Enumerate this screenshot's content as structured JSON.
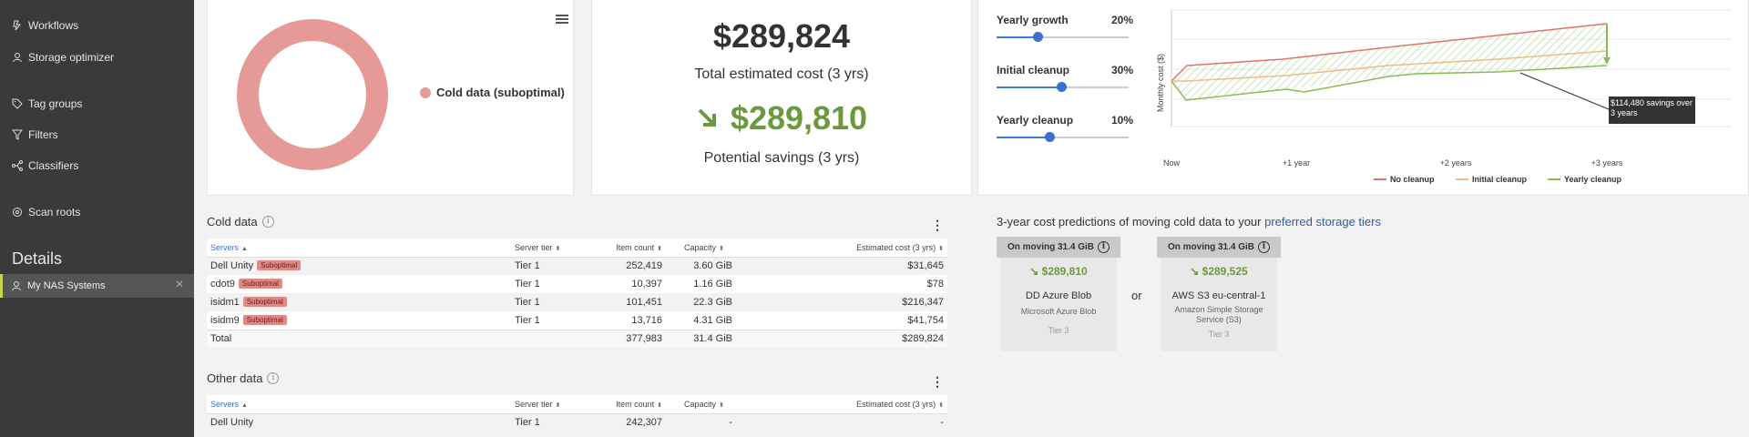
{
  "sidebar": {
    "items": [
      {
        "label": "Workflows",
        "icon": "workflow-icon"
      },
      {
        "label": "Storage optimizer",
        "icon": "user-icon"
      },
      {
        "label": "Tag groups",
        "icon": "tag-icon"
      },
      {
        "label": "Filters",
        "icon": "filter-icon"
      },
      {
        "label": "Classifiers",
        "icon": "classifier-icon"
      },
      {
        "label": "Scan roots",
        "icon": "scan-icon"
      }
    ],
    "details_heading": "Details",
    "details_item": {
      "label": "My NAS Systems",
      "icon": "user-icon"
    }
  },
  "donut": {
    "legend_label": "Cold data (suboptimal)",
    "color": "#e69a97"
  },
  "cost": {
    "total": "$289,824",
    "total_label": "Total estimated cost (3 yrs)",
    "savings": "$289,810",
    "savings_label": "Potential savings (3 yrs)"
  },
  "sliders": [
    {
      "label": "Yearly growth",
      "value_label": "20%",
      "fraction": 0.31
    },
    {
      "label": "Initial cleanup",
      "value_label": "30%",
      "fraction": 0.49
    },
    {
      "label": "Yearly cleanup",
      "value_label": "10%",
      "fraction": 0.4
    }
  ],
  "chart_data": {
    "type": "line",
    "title": "",
    "ylabel": "Monthly cost ($)",
    "xlabel": "",
    "x": [
      "Now",
      "+1 year",
      "+2 years",
      "+3 years"
    ],
    "grid": true,
    "legend_position": "bottom",
    "series": [
      {
        "name": "No cleanup",
        "color": "#e0736a"
      },
      {
        "name": "Initial cleanup",
        "color": "#eebc86"
      },
      {
        "name": "Yearly cleanup",
        "color": "#8cba52"
      }
    ],
    "annotation": "$114,480 savings over 3 years"
  },
  "cold_table": {
    "title": "Cold data",
    "columns": [
      "Servers",
      "Server tier",
      "Item count",
      "Capacity",
      "Estimated cost (3 yrs)"
    ],
    "badge": "Suboptimal",
    "rows": [
      [
        "Dell Unity",
        "Tier 1",
        "252,419",
        "3.60 GiB",
        "$31,645"
      ],
      [
        "cdot9",
        "Tier 1",
        "10,397",
        "1.16 GiB",
        "$78"
      ],
      [
        "isidm1",
        "Tier 1",
        "101,451",
        "22.3 GiB",
        "$216,347"
      ],
      [
        "isidm9",
        "Tier 1",
        "13,716",
        "4.31 GiB",
        "$41,754"
      ]
    ],
    "total": [
      "Total",
      "",
      "377,983",
      "31.4 GiB",
      "$289,824"
    ]
  },
  "other_table": {
    "title": "Other data",
    "columns": [
      "Servers",
      "Server tier",
      "Item count",
      "Capacity",
      "Estimated cost (3 yrs)"
    ],
    "rows": [
      [
        "Dell Unity",
        "Tier 1",
        "242,307",
        "-",
        "-"
      ]
    ]
  },
  "predictions": {
    "title_prefix": "3-year cost predictions of moving cold data to your ",
    "title_link": "preferred storage tiers",
    "or_label": "or",
    "cards": [
      {
        "tab": "On moving 31.4 GiB",
        "saving": "$289,810",
        "name": "DD Azure Blob",
        "sub": "Microsoft Azure Blob",
        "tier": "Tier 3"
      },
      {
        "tab": "On moving 31.4 GiB",
        "saving": "$289,525",
        "name": "AWS S3 eu-central-1",
        "sub": "Amazon Simple Storage Service (S3)",
        "tier": "Tier 3"
      }
    ]
  }
}
